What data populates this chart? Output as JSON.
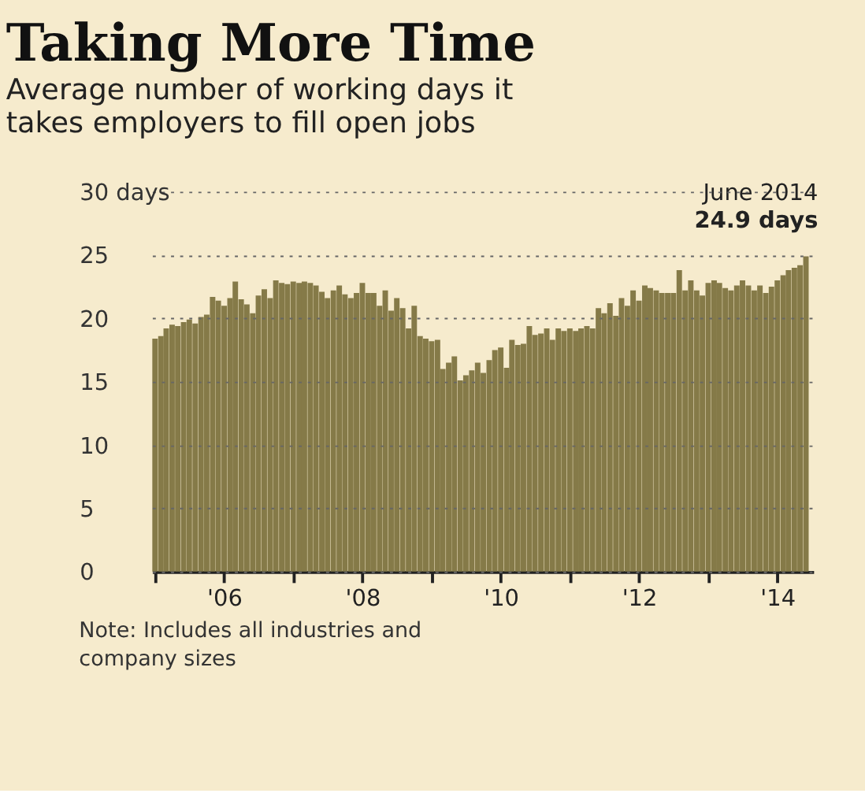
{
  "chart_data": {
    "type": "bar",
    "title": "Taking More Time",
    "subtitle": "Average number of working days it takes employers to fill open jobs",
    "x": [
      "2005-01",
      "2005-02",
      "2005-03",
      "2005-04",
      "2005-05",
      "2005-06",
      "2005-07",
      "2005-08",
      "2005-09",
      "2005-10",
      "2005-11",
      "2005-12",
      "2006-01",
      "2006-02",
      "2006-03",
      "2006-04",
      "2006-05",
      "2006-06",
      "2006-07",
      "2006-08",
      "2006-09",
      "2006-10",
      "2006-11",
      "2006-12",
      "2007-01",
      "2007-02",
      "2007-03",
      "2007-04",
      "2007-05",
      "2007-06",
      "2007-07",
      "2007-08",
      "2007-09",
      "2007-10",
      "2007-11",
      "2007-12",
      "2008-01",
      "2008-02",
      "2008-03",
      "2008-04",
      "2008-05",
      "2008-06",
      "2008-07",
      "2008-08",
      "2008-09",
      "2008-10",
      "2008-11",
      "2008-12",
      "2009-01",
      "2009-02",
      "2009-03",
      "2009-04",
      "2009-05",
      "2009-06",
      "2009-07",
      "2009-08",
      "2009-09",
      "2009-10",
      "2009-11",
      "2009-12",
      "2010-01",
      "2010-02",
      "2010-03",
      "2010-04",
      "2010-05",
      "2010-06",
      "2010-07",
      "2010-08",
      "2010-09",
      "2010-10",
      "2010-11",
      "2010-12",
      "2011-01",
      "2011-02",
      "2011-03",
      "2011-04",
      "2011-05",
      "2011-06",
      "2011-07",
      "2011-08",
      "2011-09",
      "2011-10",
      "2011-11",
      "2011-12",
      "2012-01",
      "2012-02",
      "2012-03",
      "2012-04",
      "2012-05",
      "2012-06",
      "2012-07",
      "2012-08",
      "2012-09",
      "2012-10",
      "2012-11",
      "2012-12",
      "2013-01",
      "2013-02",
      "2013-03",
      "2013-04",
      "2013-05",
      "2013-06",
      "2013-07",
      "2013-08",
      "2013-09",
      "2013-10",
      "2013-11",
      "2013-12",
      "2014-01",
      "2014-02",
      "2014-03",
      "2014-04",
      "2014-05",
      "2014-06"
    ],
    "values": [
      18.4,
      18.6,
      19.2,
      19.5,
      19.4,
      19.7,
      19.9,
      19.6,
      20.1,
      20.3,
      21.7,
      21.4,
      21.0,
      21.6,
      22.9,
      21.5,
      21.1,
      20.4,
      21.8,
      22.3,
      21.6,
      23.0,
      22.8,
      22.7,
      22.9,
      22.8,
      22.9,
      22.8,
      22.6,
      22.1,
      21.6,
      22.2,
      22.6,
      21.9,
      21.6,
      22.0,
      22.8,
      22.0,
      22.0,
      21.0,
      22.2,
      20.6,
      21.6,
      20.8,
      19.2,
      21.0,
      18.6,
      18.4,
      18.2,
      18.3,
      16.0,
      16.5,
      17.0,
      15.1,
      15.5,
      15.9,
      16.5,
      15.7,
      16.7,
      17.5,
      17.7,
      16.1,
      18.3,
      17.9,
      18.0,
      19.4,
      18.7,
      18.8,
      19.2,
      18.3,
      19.2,
      19.0,
      19.2,
      19.0,
      19.2,
      19.4,
      19.2,
      20.8,
      20.4,
      21.2,
      20.2,
      21.6,
      21.0,
      22.2,
      21.4,
      22.6,
      22.4,
      22.2,
      22.0,
      22.0,
      22.0,
      23.8,
      22.2,
      23.0,
      22.2,
      21.8,
      22.8,
      23.0,
      22.8,
      22.4,
      22.2,
      22.6,
      23.0,
      22.6,
      22.2,
      22.6,
      22.0,
      22.5,
      23.0,
      23.4,
      23.8,
      24.0,
      24.2,
      24.9
    ],
    "color": "#857a48",
    "xlim": [
      "2004-12-16",
      "2014-07-10"
    ],
    "xticks": [
      {
        "value": "2005",
        "label": null
      },
      {
        "value": "2006",
        "label": "'06"
      },
      {
        "value": "2007",
        "label": null
      },
      {
        "value": "2008",
        "label": "'08"
      },
      {
        "value": "2009",
        "label": null
      },
      {
        "value": "2010",
        "label": "'10"
      },
      {
        "value": "2011",
        "label": null
      },
      {
        "value": "2012",
        "label": "'12"
      },
      {
        "value": "2013",
        "label": null
      },
      {
        "value": "2014",
        "label": "'14"
      }
    ],
    "ylim": [
      0,
      30
    ],
    "yticks": [
      0,
      5,
      10,
      15,
      20,
      25,
      {
        "value": 30,
        "label": "30 days"
      }
    ],
    "grid": "y",
    "annotations": [
      "June 2014",
      {
        "text": "24.9 days",
        "x": "2014-06",
        "y": 24.9
      },
      "Note: Includes all industries and company sizes"
    ]
  }
}
